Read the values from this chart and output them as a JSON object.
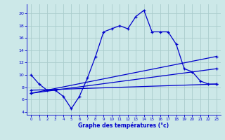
{
  "xlabel": "Graphe des températures (°c)",
  "background_color": "#cce8e8",
  "grid_color": "#aacccc",
  "line_color": "#0000cc",
  "xlim": [
    -0.5,
    23.5
  ],
  "ylim": [
    3.5,
    21.5
  ],
  "xticks": [
    0,
    1,
    2,
    3,
    4,
    5,
    6,
    7,
    8,
    9,
    10,
    11,
    12,
    13,
    14,
    15,
    16,
    17,
    18,
    19,
    20,
    21,
    22,
    23
  ],
  "yticks": [
    4,
    6,
    8,
    10,
    12,
    14,
    16,
    18,
    20
  ],
  "line1_x": [
    0,
    1,
    2,
    3,
    4,
    5,
    6,
    7,
    8,
    9,
    10,
    11,
    12,
    13,
    14,
    15,
    16,
    17,
    18,
    19,
    20,
    21,
    22,
    23
  ],
  "line1_y": [
    10,
    8.5,
    7.5,
    7.5,
    6.5,
    4.5,
    6.5,
    9.5,
    13,
    17,
    17.5,
    18,
    17.5,
    19.5,
    20.5,
    17,
    17,
    17,
    15,
    11,
    10.5,
    9,
    8.5,
    8.5
  ],
  "line2_x": [
    0,
    23
  ],
  "line2_y": [
    7.5,
    8.5
  ],
  "line3_x": [
    0,
    23
  ],
  "line3_y": [
    7.0,
    13.0
  ],
  "line4_x": [
    0,
    23
  ],
  "line4_y": [
    7.0,
    11.0
  ],
  "figsize": [
    3.2,
    2.0
  ],
  "dpi": 100
}
